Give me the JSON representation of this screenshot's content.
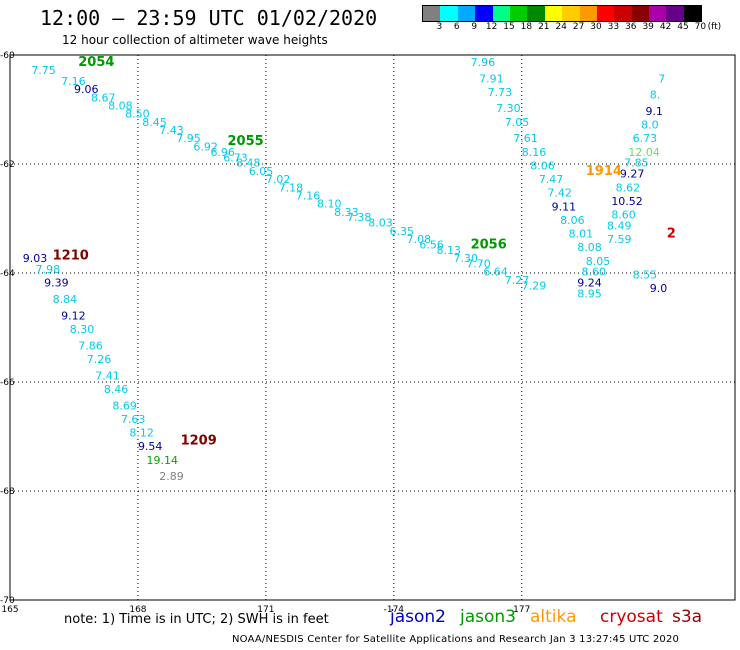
{
  "title": "12:00 – 23:59 UTC 01/02/2020",
  "subtitle": "12 hour collection of altimeter wave heights",
  "note": "note: 1) Time is in UTC; 2) SWH is in feet",
  "footer": "NOAA/NESDIS Center for Satellite Applications and Research   Jan  3 13:27:45 UTC 2020",
  "colors": {
    "jason2": "#0000cc",
    "jason3": "#009900",
    "altika": "#ff9900",
    "cryosat": "#cc0000",
    "s3a": "#990000",
    "cyan": "#00ccee",
    "navy": "#000099",
    "green": "#00aa00",
    "gray": "#808080",
    "maroon": "#800000",
    "orange": "#ff9900",
    "lightgreen": "#66dd66"
  },
  "legend": {
    "satellites": [
      {
        "name": "jason2",
        "color": "#0000cc"
      },
      {
        "name": "jason3",
        "color": "#009900"
      },
      {
        "name": "altika",
        "color": "#ff9900"
      },
      {
        "name": "cryosat",
        "color": "#cc0000"
      },
      {
        "name": "s3a",
        "color": "#990000"
      }
    ],
    "colorbar": {
      "labels": [
        "3",
        "6",
        "9",
        "12",
        "15",
        "18",
        "21",
        "24",
        "27",
        "30",
        "33",
        "36",
        "39",
        "42",
        "45",
        "70",
        "(ft)"
      ],
      "colors": [
        "#808080",
        "#00ffff",
        "#00aaff",
        "#0000ff",
        "#00ff88",
        "#00cc00",
        "#008800",
        "#ffff00",
        "#ffcc00",
        "#ff9900",
        "#ff0000",
        "#cc0000",
        "#880000",
        "#aa00aa",
        "#660088",
        "#000000"
      ]
    }
  },
  "axes": {
    "lon_ticks": [
      "165",
      "168",
      "171",
      "-174",
      "177"
    ],
    "lat_ticks": [
      "-60",
      "-62",
      "-64",
      "-66",
      "-68",
      "-70"
    ]
  },
  "chart_data": {
    "type": "scatter",
    "x_range": [
      165,
      182
    ],
    "y_range": [
      -70,
      -60
    ],
    "tracks": [
      {
        "label": "2054",
        "label_color": "#009900",
        "points": [
          {
            "lon": 165.5,
            "lat": -60.35,
            "v": "7.75",
            "c": "#00ccee"
          },
          {
            "lon": 166.2,
            "lat": -60.55,
            "v": "7.16",
            "c": "#00ccee"
          },
          {
            "lon": 166.5,
            "lat": -60.7,
            "v": "9.06",
            "c": "#000099"
          },
          {
            "lon": 166.9,
            "lat": -60.85,
            "v": "8.67",
            "c": "#00ccee"
          },
          {
            "lon": 167.3,
            "lat": -61.0,
            "v": "8.08",
            "c": "#00ccee"
          },
          {
            "lon": 167.7,
            "lat": -61.15,
            "v": "8.50",
            "c": "#00ccee"
          },
          {
            "lon": 168.1,
            "lat": -61.3,
            "v": "8.45",
            "c": "#00ccee"
          },
          {
            "lon": 168.5,
            "lat": -61.45,
            "v": "7.43",
            "c": "#00ccee"
          },
          {
            "lon": 168.9,
            "lat": -61.6,
            "v": "7.95",
            "c": "#00ccee"
          },
          {
            "lon": 169.3,
            "lat": -61.75,
            "v": "6.92",
            "c": "#00ccee"
          },
          {
            "lon": 169.7,
            "lat": -61.85,
            "v": "6.96",
            "c": "#00ccee"
          },
          {
            "lon": 170.0,
            "lat": -61.95,
            "v": "6.73",
            "c": "#00ccee"
          },
          {
            "lon": 170.3,
            "lat": -62.05,
            "v": "8.48",
            "c": "#00ccee"
          },
          {
            "lon": 170.6,
            "lat": -62.2,
            "v": "6.05",
            "c": "#00ccee"
          },
          {
            "lon": 171.0,
            "lat": -62.35,
            "v": "7.02",
            "c": "#00ccee"
          },
          {
            "lon": 171.3,
            "lat": -62.5,
            "v": "7.18",
            "c": "#00ccee"
          },
          {
            "lon": 171.7,
            "lat": -62.65,
            "v": "7.16",
            "c": "#00ccee"
          },
          {
            "lon": 172.2,
            "lat": -62.8,
            "v": "8.10",
            "c": "#00ccee"
          },
          {
            "lon": 172.6,
            "lat": -62.95,
            "v": "8.33",
            "c": "#00ccee"
          },
          {
            "lon": 172.9,
            "lat": -63.05,
            "v": "7.38",
            "c": "#00ccee"
          },
          {
            "lon": 173.4,
            "lat": -63.15,
            "v": "8.03",
            "c": "#00ccee"
          },
          {
            "lon": 173.9,
            "lat": -63.3,
            "v": "6.35",
            "c": "#00ccee"
          },
          {
            "lon": 174.3,
            "lat": -63.45,
            "v": "7.08",
            "c": "#00ccee"
          },
          {
            "lon": 174.6,
            "lat": -63.55,
            "v": "6.56",
            "c": "#00ccee"
          },
          {
            "lon": 175.0,
            "lat": -63.65,
            "v": "8.13",
            "c": "#00ccee"
          },
          {
            "lon": 175.4,
            "lat": -63.8,
            "v": "7.30",
            "c": "#00ccee"
          },
          {
            "lon": 175.7,
            "lat": -63.9,
            "v": "7.70",
            "c": "#00ccee"
          },
          {
            "lon": 176.1,
            "lat": -64.05,
            "v": "6.64",
            "c": "#00ccee"
          },
          {
            "lon": 176.6,
            "lat": -64.2,
            "v": "7.27",
            "c": "#00ccee"
          },
          {
            "lon": 177.0,
            "lat": -64.3,
            "v": "7.29",
            "c": "#00ccee"
          }
        ]
      },
      {
        "label": "2055",
        "label_color": "#009900",
        "points": []
      },
      {
        "label": "2056",
        "label_color": "#009900",
        "points": []
      },
      {
        "label": "1210",
        "label_color": "#800000",
        "points": [
          {
            "lon": 165.3,
            "lat": -63.8,
            "v": "9.03",
            "c": "#000099"
          },
          {
            "lon": 165.6,
            "lat": -64.0,
            "v": "7.98",
            "c": "#00ccee"
          },
          {
            "lon": 165.8,
            "lat": -64.25,
            "v": "9.39",
            "c": "#000099"
          },
          {
            "lon": 166.0,
            "lat": -64.55,
            "v": "8.84",
            "c": "#00ccee"
          },
          {
            "lon": 166.2,
            "lat": -64.85,
            "v": "9.12",
            "c": "#000099"
          },
          {
            "lon": 166.4,
            "lat": -65.1,
            "v": "8.30",
            "c": "#00ccee"
          },
          {
            "lon": 166.6,
            "lat": -65.4,
            "v": "7.86",
            "c": "#00ccee"
          },
          {
            "lon": 166.8,
            "lat": -65.65,
            "v": "7.26",
            "c": "#00ccee"
          },
          {
            "lon": 167.0,
            "lat": -65.95,
            "v": "7.41",
            "c": "#00ccee"
          },
          {
            "lon": 167.2,
            "lat": -66.2,
            "v": "8.46",
            "c": "#00ccee"
          },
          {
            "lon": 167.4,
            "lat": -66.5,
            "v": "8.69",
            "c": "#00ccee"
          },
          {
            "lon": 167.6,
            "lat": -66.75,
            "v": "7.63",
            "c": "#00ccee"
          },
          {
            "lon": 167.8,
            "lat": -67.0,
            "v": "8.12",
            "c": "#00ccee"
          },
          {
            "lon": 168.0,
            "lat": -67.25,
            "v": "9.54",
            "c": "#000099"
          },
          {
            "lon": 168.2,
            "lat": -67.5,
            "v": "19.14",
            "c": "#00aa00"
          },
          {
            "lon": 168.5,
            "lat": -67.8,
            "v": "2.89",
            "c": "#808080"
          }
        ]
      },
      {
        "label": "1209",
        "label_color": "#800000",
        "points": []
      },
      {
        "label": "1914",
        "label_color": "#ff9900",
        "points": [
          {
            "lon": 175.8,
            "lat": -60.2,
            "v": "7.96",
            "c": "#00ccee"
          },
          {
            "lon": 176.0,
            "lat": -60.5,
            "v": "7.91",
            "c": "#00ccee"
          },
          {
            "lon": 176.2,
            "lat": -60.75,
            "v": "7.73",
            "c": "#00ccee"
          },
          {
            "lon": 176.4,
            "lat": -61.05,
            "v": "7.30",
            "c": "#00ccee"
          },
          {
            "lon": 176.6,
            "lat": -61.3,
            "v": "7.05",
            "c": "#00ccee"
          },
          {
            "lon": 176.8,
            "lat": -61.6,
            "v": "7.61",
            "c": "#00ccee"
          },
          {
            "lon": 177.0,
            "lat": -61.85,
            "v": "8.16",
            "c": "#00ccee"
          },
          {
            "lon": 177.2,
            "lat": -62.1,
            "v": "8.06",
            "c": "#00ccee"
          },
          {
            "lon": 177.4,
            "lat": -62.35,
            "v": "7.47",
            "c": "#00ccee"
          },
          {
            "lon": 177.6,
            "lat": -62.6,
            "v": "7.42",
            "c": "#00ccee"
          },
          {
            "lon": 177.7,
            "lat": -62.85,
            "v": "9.11",
            "c": "#000099"
          },
          {
            "lon": 177.9,
            "lat": -63.1,
            "v": "8.06",
            "c": "#00ccee"
          },
          {
            "lon": 178.1,
            "lat": -63.35,
            "v": "8.01",
            "c": "#00ccee"
          },
          {
            "lon": 178.3,
            "lat": -63.6,
            "v": "8.08",
            "c": "#00ccee"
          },
          {
            "lon": 178.5,
            "lat": -63.85,
            "v": "8.05",
            "c": "#00ccee"
          },
          {
            "lon": 178.4,
            "lat": -64.05,
            "v": "8.60",
            "c": "#00ccee"
          },
          {
            "lon": 178.3,
            "lat": -64.25,
            "v": "9.24",
            "c": "#000099"
          },
          {
            "lon": 178.3,
            "lat": -64.45,
            "v": "8.95",
            "c": "#00ccee"
          }
        ]
      },
      {
        "label": "",
        "label_color": "#000000",
        "points": [
          {
            "lon": 180.2,
            "lat": -60.5,
            "v": "7",
            "c": "#00ccee"
          },
          {
            "lon": 180.0,
            "lat": -60.8,
            "v": "8.",
            "c": "#00ccee"
          },
          {
            "lon": 179.9,
            "lat": -61.1,
            "v": "9.1",
            "c": "#000099"
          },
          {
            "lon": 179.8,
            "lat": -61.35,
            "v": "8.0",
            "c": "#00ccee"
          },
          {
            "lon": 179.6,
            "lat": -61.6,
            "v": "6.73",
            "c": "#00ccee"
          },
          {
            "lon": 179.5,
            "lat": -61.85,
            "v": "12.04",
            "c": "#66dd66"
          },
          {
            "lon": 179.4,
            "lat": -62.05,
            "v": "7.85",
            "c": "#00ccee"
          },
          {
            "lon": 179.3,
            "lat": -62.25,
            "v": "9.27",
            "c": "#000099"
          },
          {
            "lon": 179.2,
            "lat": -62.5,
            "v": "8.62",
            "c": "#00ccee"
          },
          {
            "lon": 179.1,
            "lat": -62.75,
            "v": "10.52",
            "c": "#000099"
          },
          {
            "lon": 179.1,
            "lat": -63.0,
            "v": "8.60",
            "c": "#00ccee"
          },
          {
            "lon": 179.0,
            "lat": -63.2,
            "v": "8.49",
            "c": "#00ccee"
          },
          {
            "lon": 179.0,
            "lat": -63.45,
            "v": "7.59",
            "c": "#00ccee"
          },
          {
            "lon": 179.6,
            "lat": -64.1,
            "v": "8.55",
            "c": "#00ccee"
          },
          {
            "lon": 180.0,
            "lat": -64.35,
            "v": "9.0",
            "c": "#000099"
          }
        ]
      }
    ],
    "track_labels": [
      {
        "label": "2054",
        "lon": 166.6,
        "lat": -60.2,
        "c": "#009900"
      },
      {
        "label": "2055",
        "lon": 170.1,
        "lat": -61.65,
        "c": "#009900"
      },
      {
        "label": "2056",
        "lon": 175.8,
        "lat": -63.55,
        "c": "#009900"
      },
      {
        "label": "1210",
        "lon": 166.0,
        "lat": -63.75,
        "c": "#800000"
      },
      {
        "label": "1209",
        "lon": 169.0,
        "lat": -67.15,
        "c": "#800000"
      },
      {
        "lon": 178.5,
        "lat": -62.2,
        "label": "1914",
        "c": "#ff9900"
      },
      {
        "lon": 180.4,
        "lat": -63.35,
        "label": "2",
        "c": "#cc0000"
      }
    ]
  }
}
